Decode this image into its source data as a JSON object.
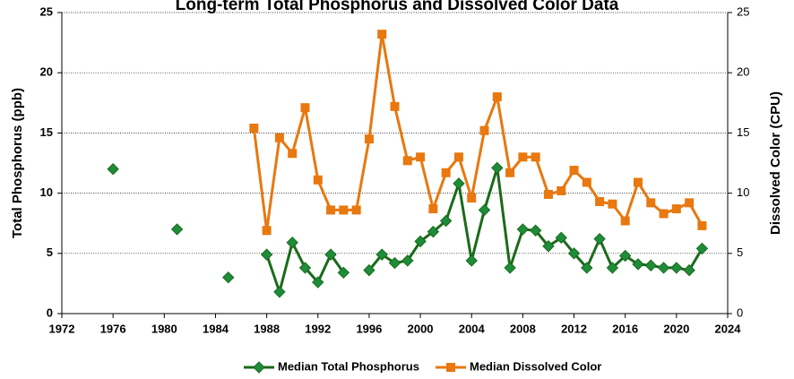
{
  "chart_data": {
    "type": "line",
    "title": "Long-term Total Phosphorus and Dissolved Color Data",
    "y_label": "Total Phosphorus (ppb)",
    "y2_label": "Dissolved Color (CPU)",
    "x": [
      1976,
      1977,
      1978,
      1979,
      1980,
      1981,
      1982,
      1983,
      1984,
      1985,
      1986,
      1987,
      1988,
      1989,
      1990,
      1991,
      1992,
      1993,
      1994,
      1995,
      1996,
      1997,
      1998,
      1999,
      2000,
      2001,
      2002,
      2003,
      2004,
      2005,
      2006,
      2007,
      2008,
      2009,
      2010,
      2011,
      2012,
      2013,
      2014,
      2015,
      2016,
      2017,
      2018,
      2019,
      2020,
      2021,
      2022
    ],
    "series": [
      {
        "name": "Median Total Phosphorus",
        "color": "#1a6b1a",
        "marker": "diamond",
        "marker_color": "#1e8c3a",
        "values": [
          12,
          null,
          null,
          null,
          null,
          7,
          null,
          null,
          null,
          3,
          null,
          null,
          4.9,
          1.8,
          5.9,
          3.8,
          2.6,
          4.9,
          3.4,
          null,
          3.6,
          4.9,
          4.2,
          4.4,
          6,
          6.8,
          7.7,
          10.8,
          4.4,
          8.6,
          12.1,
          3.8,
          7,
          6.9,
          5.6,
          6.3,
          5,
          3.8,
          6.2,
          3.8,
          4.8,
          4.1,
          4,
          3.8,
          3.8,
          3.6,
          5.4
        ]
      },
      {
        "name": "Median Dissolved Color",
        "color": "#e8780f",
        "marker": "square",
        "axis": "y2",
        "values": [
          null,
          null,
          null,
          null,
          null,
          null,
          null,
          null,
          null,
          null,
          null,
          15.4,
          6.9,
          14.6,
          13.3,
          17.1,
          11.1,
          8.6,
          8.6,
          8.6,
          14.5,
          23.2,
          17.2,
          12.7,
          13,
          8.7,
          11.7,
          13,
          9.6,
          15.2,
          18,
          11.7,
          13,
          13,
          9.9,
          10.2,
          11.9,
          10.9,
          9.3,
          9.1,
          7.7,
          10.9,
          9.2,
          8.3,
          8.7,
          9.2,
          7.3
        ]
      }
    ],
    "xlim": [
      1972,
      2024
    ],
    "xticks": [
      1972,
      1976,
      1980,
      1984,
      1988,
      1992,
      1996,
      2000,
      2004,
      2008,
      2012,
      2016,
      2020,
      2024
    ],
    "ylim": [
      0,
      25
    ],
    "yticks": [
      0,
      5,
      10,
      15,
      20,
      25
    ],
    "y2lim": [
      0,
      25
    ],
    "y2ticks": [
      0,
      5,
      10,
      15,
      20,
      25
    ],
    "grid": true,
    "legend": "bottom"
  }
}
